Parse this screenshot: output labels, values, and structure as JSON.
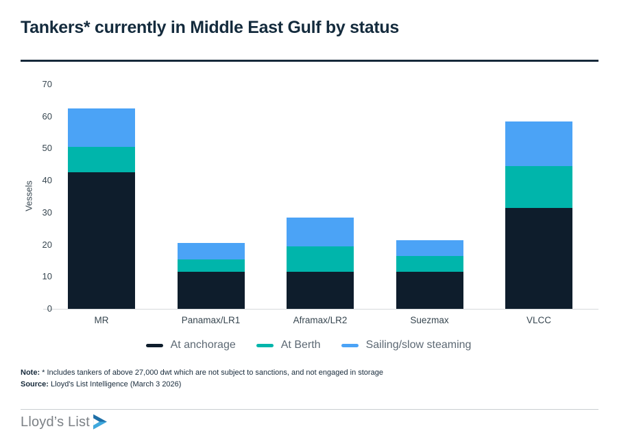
{
  "title": "Tankers* currently in Middle East Gulf by status",
  "colors": {
    "navy": "#0e1d2c",
    "teal": "#00b5ab",
    "blue": "#4ba3f6",
    "title_text": "#142b3d",
    "axis_text": "#36454f",
    "legend_text": "#5c6873",
    "logo_dark_blue": "#1e6fa7",
    "logo_light_blue": "#3fa9de"
  },
  "chart_data": {
    "type": "bar",
    "stacked": true,
    "title": "Tankers* currently in Middle East Gulf by status",
    "xlabel": "",
    "ylabel": "Vessels",
    "ylim": [
      0,
      70
    ],
    "yticks": [
      0,
      10,
      20,
      30,
      40,
      50,
      60,
      70
    ],
    "grid": false,
    "legend_position": "bottom",
    "categories": [
      "MR",
      "Panamax/LR1",
      "Aframax/LR2",
      "Suezmax",
      "VLCC"
    ],
    "series": [
      {
        "name": "At anchorage",
        "color_key": "navy",
        "values": [
          42.5,
          11.5,
          11.5,
          11.5,
          31.5
        ]
      },
      {
        "name": "At Berth",
        "color_key": "teal",
        "values": [
          8,
          4,
          8,
          5,
          13
        ]
      },
      {
        "name": "Sailing/slow steaming",
        "color_key": "blue",
        "values": [
          12,
          5,
          9,
          5,
          14
        ]
      }
    ]
  },
  "note": {
    "label": "Note:",
    "text": " * Includes tankers of above 27,000 dwt which are not subject to sanctions, and not engaged in storage"
  },
  "source": {
    "label": "Source:",
    "text": " Lloyd's List Intelligence (March 3 2026)"
  },
  "footer": {
    "logo_text": "Lloyd’s List"
  }
}
